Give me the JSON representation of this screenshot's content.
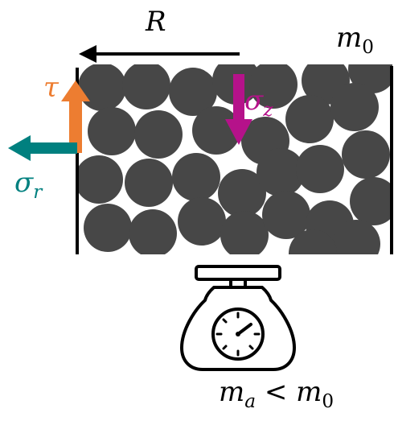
{
  "labels": {
    "radius": "R",
    "initial_mass_base": "m",
    "initial_mass_sub": "0",
    "shear_stress": "τ",
    "axial_stress_base": "σ",
    "axial_stress_sub": "z",
    "radial_stress_base": "σ",
    "radial_stress_sub": "r",
    "apparent_mass_base": "m",
    "apparent_mass_sub": "a",
    "relation": "<",
    "apparent_mass_rhs_base": "m",
    "apparent_mass_rhs_sub": "0"
  },
  "colors": {
    "grain": "#474747",
    "shear_arrow": "#ED7D31",
    "axial_arrow": "#B5128A",
    "radial_arrow": "#00807F",
    "outline": "#000000"
  },
  "icons": {
    "scale": "kitchen-scale-icon",
    "dial": "dial-icon"
  }
}
